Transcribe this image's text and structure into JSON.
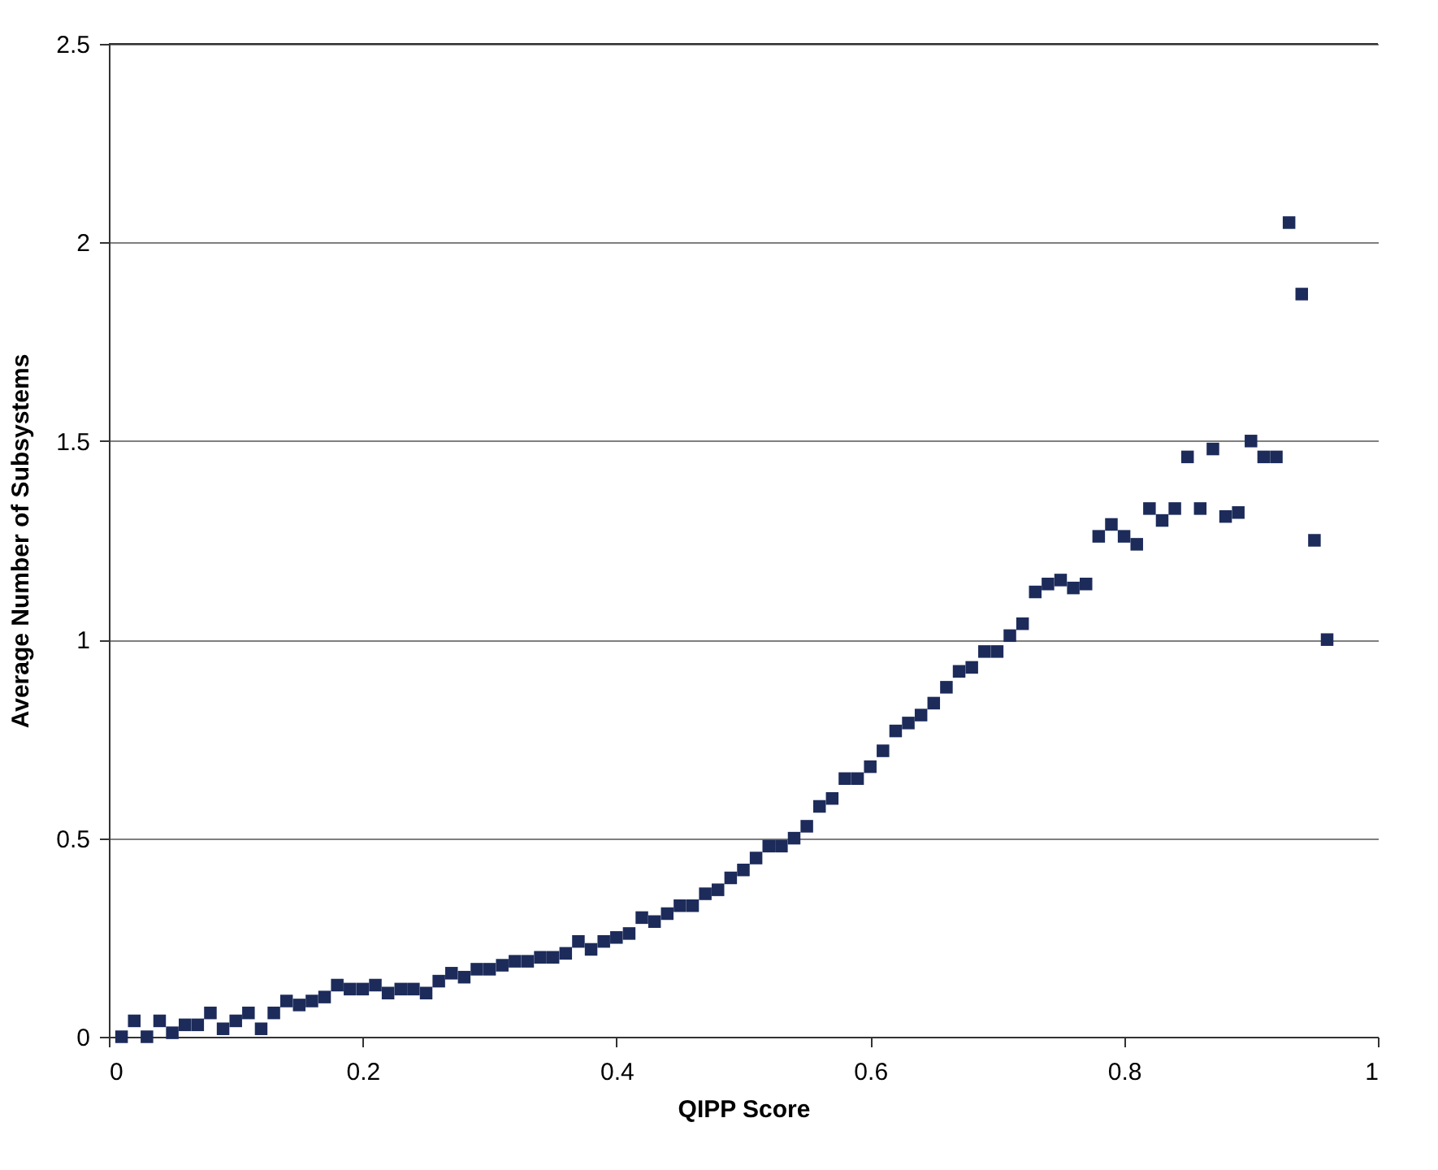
{
  "chart_data": {
    "type": "scatter",
    "xlabel": "QIPP Score",
    "ylabel": "Average Number of Subsystems",
    "x": [
      0.01,
      0.02,
      0.03,
      0.04,
      0.05,
      0.06,
      0.07,
      0.08,
      0.09,
      0.1,
      0.11,
      0.12,
      0.13,
      0.14,
      0.15,
      0.16,
      0.17,
      0.18,
      0.19,
      0.2,
      0.21,
      0.22,
      0.23,
      0.24,
      0.25,
      0.26,
      0.27,
      0.28,
      0.29,
      0.3,
      0.31,
      0.32,
      0.33,
      0.34,
      0.35,
      0.36,
      0.37,
      0.38,
      0.39,
      0.4,
      0.41,
      0.42,
      0.43,
      0.44,
      0.45,
      0.46,
      0.47,
      0.48,
      0.49,
      0.5,
      0.51,
      0.52,
      0.53,
      0.54,
      0.55,
      0.56,
      0.57,
      0.58,
      0.59,
      0.6,
      0.61,
      0.62,
      0.63,
      0.64,
      0.65,
      0.66,
      0.67,
      0.68,
      0.69,
      0.7,
      0.71,
      0.72,
      0.73,
      0.74,
      0.75,
      0.76,
      0.77,
      0.78,
      0.79,
      0.8,
      0.81,
      0.82,
      0.83,
      0.84,
      0.85,
      0.86,
      0.87,
      0.88,
      0.89,
      0.9,
      0.91,
      0.92,
      0.93,
      0.94,
      0.95,
      0.96
    ],
    "series": [
      {
        "color": "#1c2b5a",
        "values": [
          0.0,
          0.04,
          0.0,
          0.04,
          0.01,
          0.03,
          0.03,
          0.06,
          0.02,
          0.04,
          0.06,
          0.02,
          0.06,
          0.09,
          0.08,
          0.09,
          0.1,
          0.13,
          0.12,
          0.12,
          0.13,
          0.11,
          0.12,
          0.12,
          0.11,
          0.14,
          0.16,
          0.15,
          0.17,
          0.17,
          0.18,
          0.19,
          0.19,
          0.2,
          0.2,
          0.21,
          0.24,
          0.22,
          0.24,
          0.25,
          0.26,
          0.3,
          0.29,
          0.31,
          0.33,
          0.33,
          0.36,
          0.37,
          0.4,
          0.42,
          0.45,
          0.48,
          0.48,
          0.5,
          0.53,
          0.58,
          0.6,
          0.65,
          0.65,
          0.68,
          0.72,
          0.77,
          0.79,
          0.81,
          0.84,
          0.88,
          0.92,
          0.93,
          0.97,
          0.97,
          1.01,
          1.04,
          1.12,
          1.14,
          1.15,
          1.13,
          1.14,
          1.26,
          1.29,
          1.26,
          1.24,
          1.33,
          1.3,
          1.33,
          1.46,
          1.33,
          1.48,
          1.31,
          1.32,
          1.5,
          1.46,
          1.46,
          2.05,
          1.87,
          1.25,
          1.0
        ]
      }
    ],
    "xlim": [
      0,
      1
    ],
    "xticks": [
      0,
      0.2,
      0.4,
      0.6,
      0.8,
      1
    ],
    "ylim": [
      0,
      2.5
    ],
    "yticks": [
      0,
      0.5,
      1,
      1.5,
      2,
      2.5
    ],
    "grid": "y",
    "marker": "square",
    "legend": false
  }
}
